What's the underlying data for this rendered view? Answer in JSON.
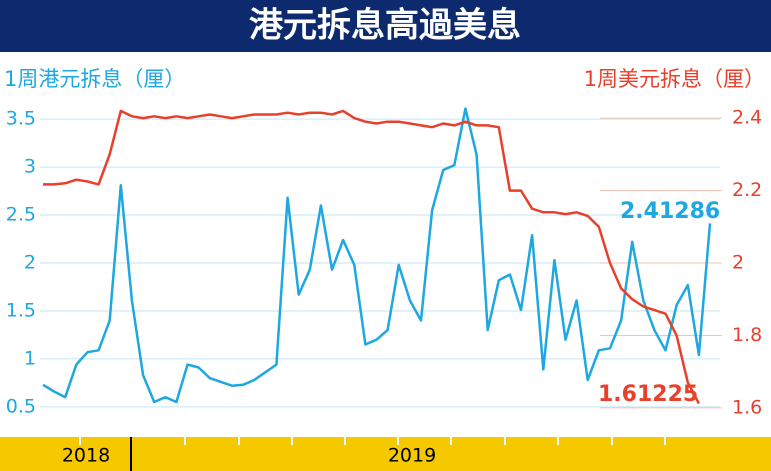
{
  "chart_data": {
    "type": "line",
    "title": "港元拆息高過美息",
    "y_label": "1周港元拆息（厘）",
    "y2_label": "1周美元拆息（厘）",
    "categories": [
      null,
      null,
      null,
      null,
      null,
      null,
      null,
      null,
      null,
      null,
      null,
      null,
      null,
      null,
      null,
      null,
      null,
      null,
      null,
      null,
      null,
      null,
      null,
      null,
      null,
      null,
      null,
      null,
      null,
      null,
      null,
      null,
      null,
      null,
      null,
      null,
      null,
      null,
      null,
      null,
      null,
      null,
      null,
      null,
      null,
      null,
      null,
      null,
      null,
      null,
      null,
      null,
      null,
      null,
      null,
      null,
      null,
      null,
      null,
      null,
      null
    ],
    "x_group_labels": [
      "2018",
      "2019"
    ],
    "series": [
      {
        "name": "1周港元拆息",
        "color": "#1ea7e0",
        "axis": "y",
        "values": [
          0.73,
          0.66,
          0.6,
          0.94,
          1.07,
          1.09,
          1.4,
          2.81,
          1.61,
          0.83,
          0.55,
          0.6,
          0.55,
          0.94,
          0.91,
          0.8,
          0.76,
          0.72,
          0.73,
          0.78,
          0.86,
          0.94,
          2.68,
          1.67,
          1.93,
          2.6,
          1.93,
          2.24,
          1.98,
          1.15,
          1.2,
          1.3,
          1.98,
          1.61,
          1.4,
          2.55,
          2.97,
          3.02,
          3.61,
          3.13,
          1.3,
          1.82,
          1.88,
          1.51,
          2.29,
          0.89,
          2.03,
          1.2,
          1.61,
          0.78,
          1.09,
          1.11,
          1.4,
          2.22,
          1.61,
          1.3,
          1.09,
          1.56,
          1.77,
          1.04,
          2.41286
        ]
      },
      {
        "name": "1周美元拆息",
        "color": "#e8402a",
        "axis": "y2",
        "values": [
          2.217,
          2.217,
          2.22,
          2.23,
          2.225,
          2.217,
          2.3,
          2.42,
          2.405,
          2.4,
          2.405,
          2.4,
          2.405,
          2.4,
          2.405,
          2.41,
          2.405,
          2.4,
          2.405,
          2.41,
          2.41,
          2.41,
          2.415,
          2.41,
          2.415,
          2.415,
          2.41,
          2.42,
          2.4,
          2.39,
          2.385,
          2.39,
          2.39,
          2.385,
          2.38,
          2.375,
          2.385,
          2.38,
          2.39,
          2.38,
          2.38,
          2.375,
          2.2,
          2.2,
          2.15,
          2.14,
          2.14,
          2.135,
          2.14,
          2.13,
          2.1,
          2.0,
          1.93,
          1.9,
          1.88,
          1.87,
          1.86,
          1.8,
          1.67,
          1.61225,
          null
        ]
      }
    ],
    "annotations": [
      "2.41286",
      "1.61225"
    ],
    "ylim": [
      0.3,
      3.7
    ],
    "yticks": [
      0.5,
      1.0,
      1.5,
      2.0,
      2.5,
      3.0,
      3.5
    ],
    "y2lim": [
      1.55,
      2.45
    ],
    "y2ticks": [
      1.6,
      1.8,
      2.0,
      2.2,
      2.4
    ],
    "grid": true
  }
}
